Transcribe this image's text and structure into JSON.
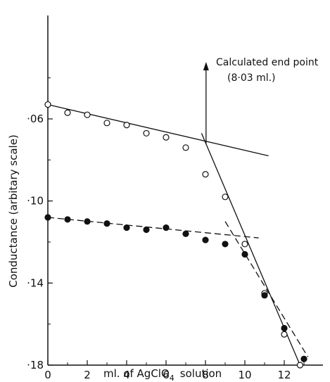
{
  "chart_data": {
    "type": "scatter",
    "title": "",
    "xlabel": "ml. of AgClO",
    "xlabel_subscript": "4",
    "xlabel_suffix": "solution",
    "ylabel": "Conductance (arbitary scale)",
    "xlim": [
      0,
      13.3
    ],
    "ylim": [
      0.03,
      0.18
    ],
    "y_inverted": true,
    "x_ticks": [
      0,
      2,
      4,
      6,
      8,
      10,
      12
    ],
    "x_tick_labels": [
      "0",
      "2",
      "4",
      "6",
      "8",
      "10",
      "12"
    ],
    "y_ticks": [
      0.06,
      0.1,
      0.14,
      0.18
    ],
    "y_tick_labels": [
      "·06",
      "·10",
      "·14",
      "·18"
    ],
    "grid": false,
    "series": [
      {
        "marker": "open-circle",
        "x": [
          0,
          1,
          2,
          3,
          4,
          5,
          6,
          7,
          8,
          9,
          10,
          11,
          12,
          12.8
        ],
        "y": [
          0.053,
          0.057,
          0.058,
          0.062,
          0.063,
          0.067,
          0.069,
          0.074,
          0.087,
          0.098,
          0.121,
          0.145,
          0.165,
          0.18
        ]
      },
      {
        "marker": "filled-circle",
        "x": [
          0,
          1,
          2,
          3,
          4,
          5,
          6,
          7,
          8,
          9,
          10,
          11,
          12,
          13
        ],
        "y": [
          0.108,
          0.109,
          0.11,
          0.111,
          0.113,
          0.114,
          0.113,
          0.116,
          0.119,
          0.121,
          0.126,
          0.146,
          0.162,
          0.177
        ]
      }
    ],
    "fit_lines": [
      {
        "style": "solid",
        "x": [
          0,
          11.2
        ],
        "y": [
          0.053,
          0.078
        ]
      },
      {
        "style": "solid",
        "x": [
          7.8,
          12.8
        ],
        "y": [
          0.067,
          0.18
        ]
      },
      {
        "style": "dashed",
        "x": [
          0,
          10.7
        ],
        "y": [
          0.108,
          0.118
        ]
      },
      {
        "style": "dashed",
        "x": [
          9.0,
          13.2
        ],
        "y": [
          0.11,
          0.176
        ]
      }
    ],
    "annotation": {
      "line1": "Calculated end point",
      "line2": "(8·03 ml.)",
      "arrow_x": 8.03,
      "arrow_y": 0.072
    }
  }
}
